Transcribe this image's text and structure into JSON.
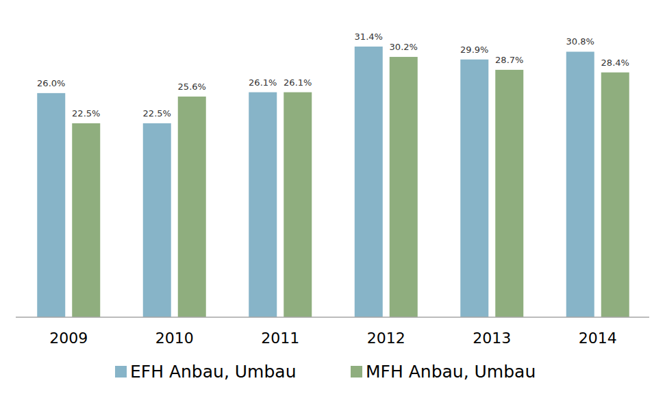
{
  "chart_data": {
    "type": "bar",
    "categories": [
      "2009",
      "2010",
      "2011",
      "2012",
      "2013",
      "2014"
    ],
    "series": [
      {
        "name": "EFH Anbau, Umbau",
        "color": "#87b4c8",
        "values": [
          26.0,
          22.5,
          26.1,
          31.4,
          29.9,
          30.8
        ],
        "value_labels": [
          "26.0%",
          "22.5%",
          "26.1%",
          "31.4%",
          "29.9%",
          "30.8%"
        ]
      },
      {
        "name": "MFH Anbau, Umbau",
        "color": "#8fae7e",
        "values": [
          22.5,
          25.6,
          26.1,
          30.2,
          28.7,
          28.4
        ],
        "value_labels": [
          "22.5%",
          "25.6%",
          "26.1%",
          "30.2%",
          "28.7%",
          "28.4%"
        ]
      }
    ],
    "ylim": [
      0,
      36.8
    ],
    "tick_labels": "x",
    "data_labels": true,
    "legend": "bottom",
    "grid": false
  }
}
